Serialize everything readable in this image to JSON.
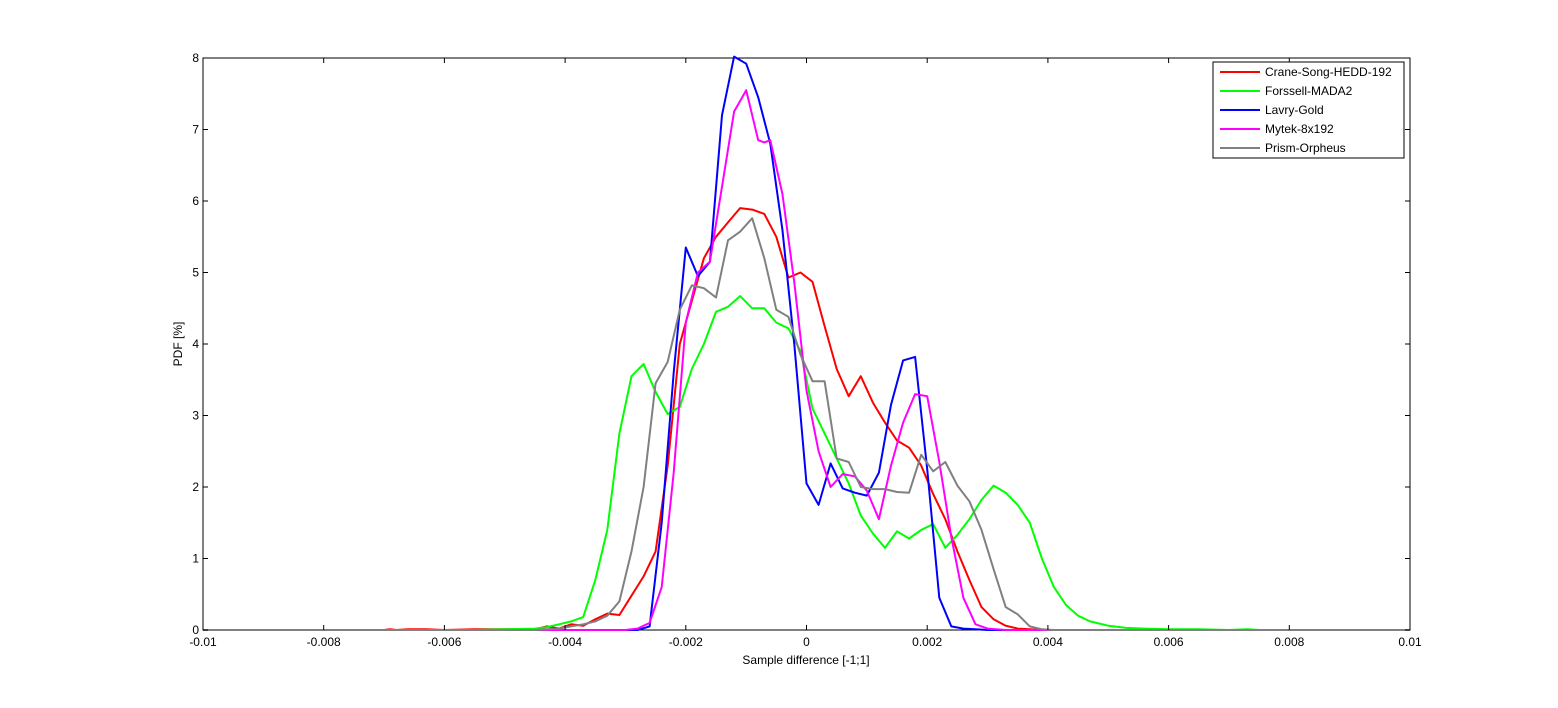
{
  "chart_data": {
    "type": "line",
    "title": "",
    "xlabel": "Sample difference [-1;1]",
    "ylabel": "PDF [%]",
    "xlim": [
      -0.01,
      0.01
    ],
    "ylim": [
      0,
      8
    ],
    "xticks": [
      -0.01,
      -0.008,
      -0.006,
      -0.004,
      -0.002,
      0,
      0.002,
      0.004,
      0.006,
      0.008,
      0.01
    ],
    "xtick_labels": [
      "-0.01",
      "-0.008",
      "-0.006",
      "-0.004",
      "-0.002",
      "0",
      "0.002",
      "0.004",
      "0.006",
      "0.008",
      "0.01"
    ],
    "yticks": [
      0,
      1,
      2,
      3,
      4,
      5,
      6,
      7,
      8
    ],
    "ytick_labels": [
      "0",
      "1",
      "2",
      "3",
      "4",
      "5",
      "6",
      "7",
      "8"
    ],
    "grid": false,
    "legend_position": "top-right",
    "series": [
      {
        "name": "Crane-Song-HEDD-192",
        "color": "#ff0000",
        "x": [
          -0.01,
          -0.007,
          -0.0069,
          -0.0068,
          -0.0066,
          -0.0063,
          -0.006,
          -0.0055,
          -0.005,
          -0.0045,
          -0.0043,
          -0.0041,
          -0.0039,
          -0.0037,
          -0.0035,
          -0.0033,
          -0.0031,
          -0.0029,
          -0.0027,
          -0.0025,
          -0.0023,
          -0.0021,
          -0.0019,
          -0.0017,
          -0.0015,
          -0.0013,
          -0.0011,
          -0.0009,
          -0.0007,
          -0.0005,
          -0.0003,
          -0.0001,
          0.0001,
          0.0003,
          0.0005,
          0.0007,
          0.0009,
          0.0011,
          0.0013,
          0.0015,
          0.0017,
          0.0019,
          0.0021,
          0.0023,
          0.0025,
          0.0027,
          0.0029,
          0.0031,
          0.0033,
          0.0035,
          0.0037,
          0.0039,
          0.01
        ],
        "y": [
          0,
          0,
          0.01,
          0,
          0.01,
          0.01,
          0.0,
          0.01,
          0.01,
          0.01,
          0.05,
          0.02,
          0.08,
          0.06,
          0.15,
          0.23,
          0.21,
          0.48,
          0.75,
          1.1,
          2.3,
          4.0,
          4.6,
          5.2,
          5.5,
          5.7,
          5.9,
          5.88,
          5.82,
          5.5,
          4.93,
          5.0,
          4.87,
          4.25,
          3.65,
          3.27,
          3.55,
          3.18,
          2.9,
          2.65,
          2.55,
          2.3,
          1.9,
          1.55,
          1.1,
          0.7,
          0.32,
          0.15,
          0.06,
          0.02,
          0.01,
          0,
          0
        ]
      },
      {
        "name": "Forssell-MADA2",
        "color": "#00ff00",
        "x": [
          -0.01,
          -0.0055,
          -0.005,
          -0.0045,
          -0.0043,
          -0.0041,
          -0.0039,
          -0.0037,
          -0.0035,
          -0.0033,
          -0.0031,
          -0.0029,
          -0.0027,
          -0.0025,
          -0.0023,
          -0.0021,
          -0.0019,
          -0.0017,
          -0.0015,
          -0.0013,
          -0.0011,
          -0.0009,
          -0.0007,
          -0.0005,
          -0.0003,
          -0.0001,
          0.0001,
          0.0003,
          0.0005,
          0.0007,
          0.0009,
          0.0011,
          0.0013,
          0.0015,
          0.0017,
          0.0019,
          0.0021,
          0.0023,
          0.0025,
          0.0027,
          0.0029,
          0.0031,
          0.0033,
          0.0035,
          0.0037,
          0.0039,
          0.0041,
          0.0043,
          0.0045,
          0.0047,
          0.005,
          0.0053,
          0.0056,
          0.006,
          0.0065,
          0.007,
          0.0073,
          0.0075,
          0.01
        ],
        "y": [
          0,
          0,
          0.01,
          0.02,
          0.04,
          0.08,
          0.12,
          0.18,
          0.7,
          1.4,
          2.75,
          3.55,
          3.72,
          3.33,
          3.02,
          3.12,
          3.65,
          4.0,
          4.45,
          4.52,
          4.67,
          4.5,
          4.5,
          4.3,
          4.22,
          3.9,
          3.1,
          2.75,
          2.4,
          2.05,
          1.6,
          1.35,
          1.15,
          1.38,
          1.28,
          1.4,
          1.48,
          1.15,
          1.33,
          1.55,
          1.82,
          2.02,
          1.92,
          1.75,
          1.5,
          1.0,
          0.6,
          0.35,
          0.2,
          0.12,
          0.06,
          0.03,
          0.02,
          0.01,
          0.01,
          0.0,
          0.01,
          0,
          0
        ]
      },
      {
        "name": "Lavry-Gold",
        "color": "#0000ff",
        "x": [
          -0.01,
          -0.0028,
          -0.0026,
          -0.0024,
          -0.0022,
          -0.002,
          -0.0018,
          -0.0016,
          -0.0014,
          -0.0012,
          -0.001,
          -0.0008,
          -0.0006,
          -0.0004,
          -0.0002,
          0.0,
          0.0002,
          0.0004,
          0.0006,
          0.0008,
          0.001,
          0.0012,
          0.0014,
          0.0016,
          0.0018,
          0.002,
          0.0022,
          0.0024,
          0.0026,
          0.0028,
          0.003,
          0.01
        ],
        "y": [
          0,
          0,
          0.05,
          1.5,
          3.6,
          5.35,
          4.95,
          5.15,
          7.2,
          8.02,
          7.92,
          7.45,
          6.8,
          5.6,
          3.98,
          2.05,
          1.75,
          2.33,
          1.98,
          1.92,
          1.88,
          2.2,
          3.15,
          3.77,
          3.82,
          2.25,
          0.45,
          0.05,
          0.02,
          0.01,
          0,
          0
        ]
      },
      {
        "name": "Mytek-8x192",
        "color": "#ff00ff",
        "x": [
          -0.01,
          -0.003,
          -0.0028,
          -0.0026,
          -0.0024,
          -0.0022,
          -0.002,
          -0.0018,
          -0.0016,
          -0.0014,
          -0.0012,
          -0.001,
          -0.0009,
          -0.0008,
          -0.0007,
          -0.0006,
          -0.0004,
          -0.0002,
          0.0,
          0.0002,
          0.0004,
          0.0006,
          0.0008,
          0.001,
          0.0012,
          0.0014,
          0.0016,
          0.0018,
          0.002,
          0.0022,
          0.0024,
          0.0026,
          0.0028,
          0.003,
          0.0033,
          0.01
        ],
        "y": [
          0,
          0,
          0.02,
          0.1,
          0.6,
          2.2,
          4.3,
          5.0,
          5.15,
          6.2,
          7.25,
          7.55,
          7.2,
          6.85,
          6.82,
          6.85,
          6.1,
          4.85,
          3.35,
          2.5,
          2.0,
          2.18,
          2.15,
          1.95,
          1.55,
          2.3,
          2.9,
          3.3,
          3.27,
          2.35,
          1.3,
          0.45,
          0.08,
          0.02,
          0,
          0
        ]
      },
      {
        "name": "Prism-Orpheus",
        "color": "#808080",
        "x": [
          -0.01,
          -0.0045,
          -0.0043,
          -0.0041,
          -0.0039,
          -0.0037,
          -0.0035,
          -0.0033,
          -0.0031,
          -0.0029,
          -0.0027,
          -0.0025,
          -0.0023,
          -0.0021,
          -0.0019,
          -0.0017,
          -0.0015,
          -0.0013,
          -0.0011,
          -0.0009,
          -0.0007,
          -0.0005,
          -0.0003,
          -0.0001,
          0.0001,
          0.0003,
          0.0005,
          0.0007,
          0.0009,
          0.0011,
          0.0013,
          0.0015,
          0.0017,
          0.0019,
          0.0021,
          0.0023,
          0.0025,
          0.0027,
          0.0029,
          0.0031,
          0.0033,
          0.0035,
          0.0037,
          0.0039,
          0.0041,
          0.01
        ],
        "y": [
          0,
          0,
          0.01,
          0.02,
          0.05,
          0.08,
          0.12,
          0.2,
          0.4,
          1.1,
          2.0,
          3.45,
          3.75,
          4.48,
          4.82,
          4.78,
          4.65,
          5.45,
          5.57,
          5.76,
          5.2,
          4.48,
          4.38,
          3.85,
          3.48,
          3.48,
          2.4,
          2.35,
          2.0,
          1.97,
          1.97,
          1.93,
          1.92,
          2.45,
          2.22,
          2.35,
          2.02,
          1.8,
          1.4,
          0.85,
          0.32,
          0.22,
          0.05,
          0.01,
          0,
          0
        ]
      }
    ]
  }
}
